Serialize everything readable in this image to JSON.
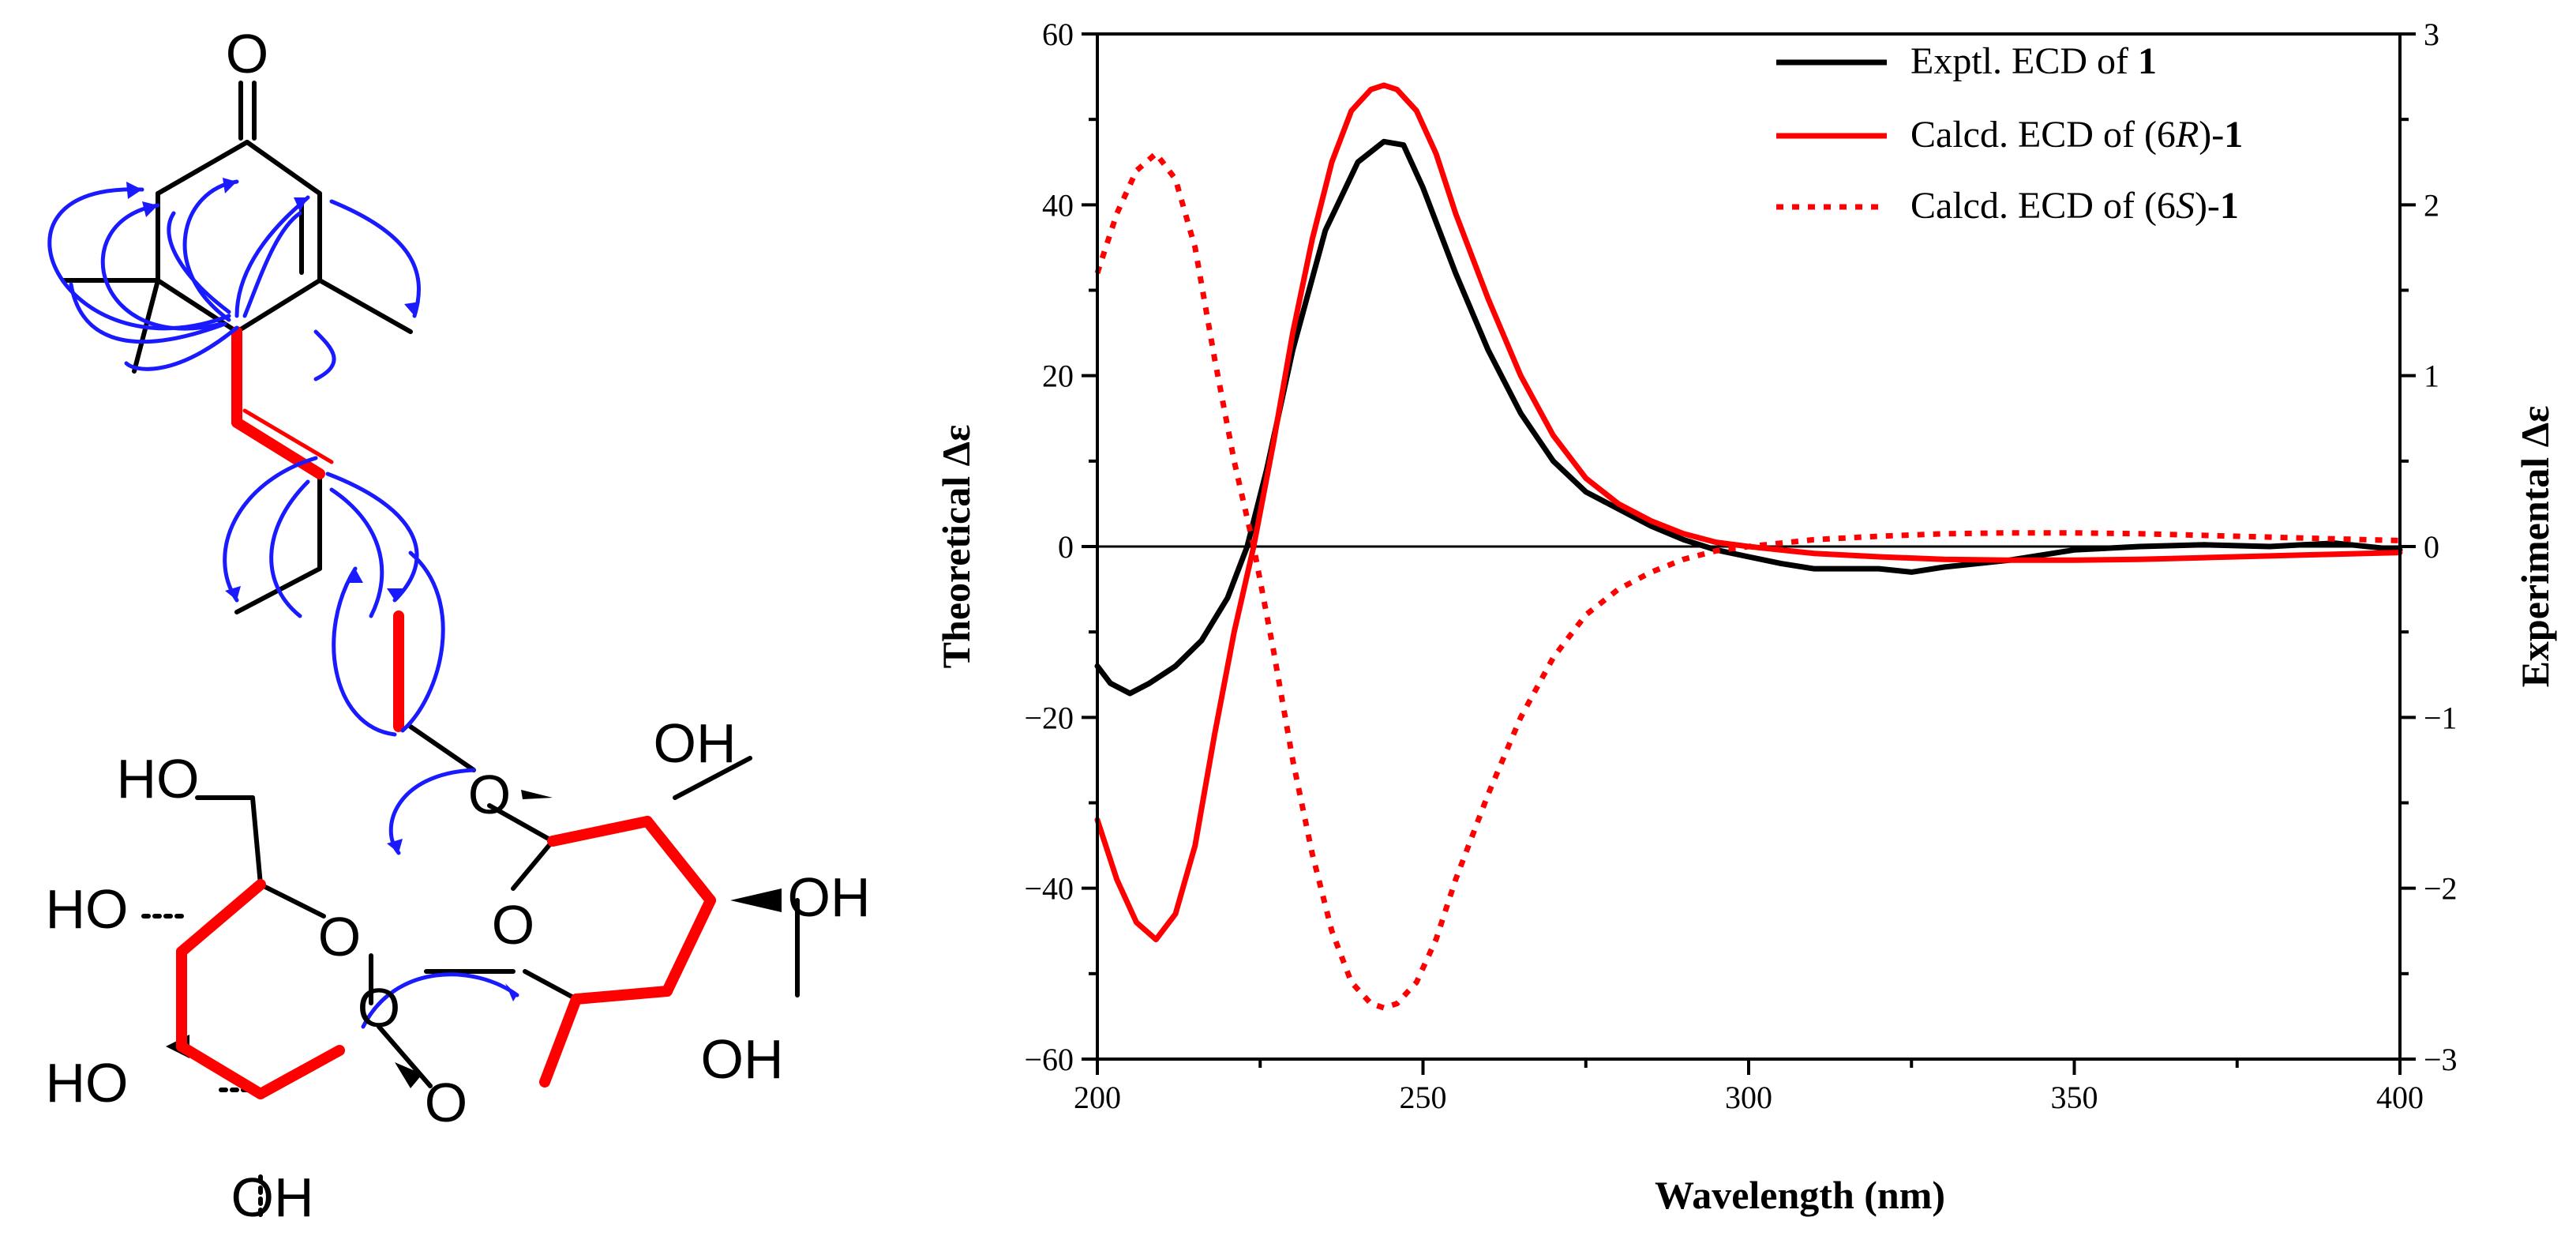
{
  "structure": {
    "atom_labels": [
      "O",
      "O",
      "O",
      "OH",
      "OH",
      "OH",
      "O",
      "HO",
      "HO",
      "O",
      "O",
      "HO",
      "OH"
    ],
    "colors": {
      "bonds": "#000000",
      "highlight_bonds": "#ff0000",
      "hmbc_arrows": "#1a1aff"
    }
  },
  "chart_data": {
    "type": "line",
    "title": "",
    "xlabel": "Wavelength (nm)",
    "ylabel_left": "Theoretical Δε",
    "ylabel_right": "Experimental Δε",
    "xlim": [
      200,
      400
    ],
    "ylim_left": [
      -60,
      60
    ],
    "ylim_right": [
      -3,
      3
    ],
    "xticks": [
      200,
      250,
      300,
      350,
      400
    ],
    "yticks_left": [
      -60,
      -40,
      -20,
      0,
      20,
      40,
      60
    ],
    "yticks_right": [
      -3,
      -2,
      -1,
      0,
      1,
      2,
      3
    ],
    "zero_line": true,
    "legend_position": "top-right",
    "series": [
      {
        "name": "Exptl. ECD of 1",
        "legend_parts": [
          [
            "Exptl. ECD of ",
            ""
          ],
          [
            "1",
            "bold"
          ]
        ],
        "axis": "right",
        "color": "#000000",
        "dash": "solid",
        "x": [
          200,
          202,
          205,
          208,
          212,
          216,
          220,
          223,
          226,
          230,
          235,
          240,
          244,
          247,
          250,
          255,
          260,
          265,
          270,
          275,
          280,
          285,
          290,
          295,
          300,
          305,
          310,
          320,
          325,
          330,
          340,
          350,
          360,
          370,
          380,
          390,
          400
        ],
        "y": [
          -0.7,
          -0.8,
          -0.86,
          -0.8,
          -0.7,
          -0.55,
          -0.3,
          0.0,
          0.45,
          1.15,
          1.85,
          2.25,
          2.37,
          2.35,
          2.1,
          1.6,
          1.15,
          0.78,
          0.5,
          0.32,
          0.22,
          0.12,
          0.04,
          -0.02,
          -0.06,
          -0.1,
          -0.13,
          -0.13,
          -0.15,
          -0.12,
          -0.08,
          -0.02,
          0.0,
          0.01,
          0.0,
          0.02,
          -0.02
        ]
      },
      {
        "name": "Calcd. ECD of (6R)-1",
        "legend_parts": [
          [
            "Calcd. ECD of (6",
            ""
          ],
          [
            "R",
            "italic"
          ],
          [
            ")-",
            ""
          ],
          [
            "1",
            "bold"
          ]
        ],
        "axis": "left",
        "color": "#ff0000",
        "dash": "solid",
        "x": [
          200,
          203,
          206,
          209,
          212,
          215,
          218,
          221,
          224,
          227,
          230,
          233,
          236,
          239,
          242,
          244,
          246,
          249,
          252,
          255,
          260,
          265,
          270,
          275,
          280,
          285,
          290,
          295,
          300,
          310,
          320,
          330,
          340,
          350,
          360,
          370,
          380,
          390,
          400
        ],
        "y": [
          -32,
          -39,
          -44,
          -46,
          -43,
          -35,
          -22,
          -10,
          0,
          12,
          25,
          36,
          45,
          51,
          53.5,
          54,
          53.5,
          51,
          46,
          39,
          29,
          20,
          13,
          8,
          5,
          3,
          1.5,
          0.5,
          0,
          -0.8,
          -1.2,
          -1.5,
          -1.6,
          -1.6,
          -1.5,
          -1.3,
          -1.1,
          -0.9,
          -0.7
        ]
      },
      {
        "name": "Calcd. ECD of (6S)-1",
        "legend_parts": [
          [
            "Calcd. ECD of (6",
            ""
          ],
          [
            "S",
            "italic"
          ],
          [
            ")-",
            ""
          ],
          [
            "1",
            "bold"
          ]
        ],
        "axis": "left",
        "color": "#ff0000",
        "dash": "dotted",
        "x": [
          200,
          203,
          206,
          209,
          212,
          215,
          218,
          221,
          224,
          227,
          230,
          233,
          236,
          239,
          242,
          244,
          246,
          249,
          252,
          255,
          260,
          265,
          270,
          275,
          280,
          285,
          290,
          295,
          300,
          310,
          320,
          330,
          340,
          350,
          360,
          370,
          380,
          390,
          400
        ],
        "y": [
          32,
          39,
          44,
          46,
          43,
          35,
          22,
          10,
          0,
          -12,
          -25,
          -36,
          -45,
          -51,
          -53.5,
          -54,
          -53.5,
          -51,
          -46,
          -39,
          -29,
          -20,
          -13,
          -8,
          -5,
          -3,
          -1.5,
          -0.5,
          0,
          0.8,
          1.2,
          1.5,
          1.6,
          1.6,
          1.5,
          1.3,
          1.1,
          0.9,
          0.7
        ]
      }
    ]
  }
}
